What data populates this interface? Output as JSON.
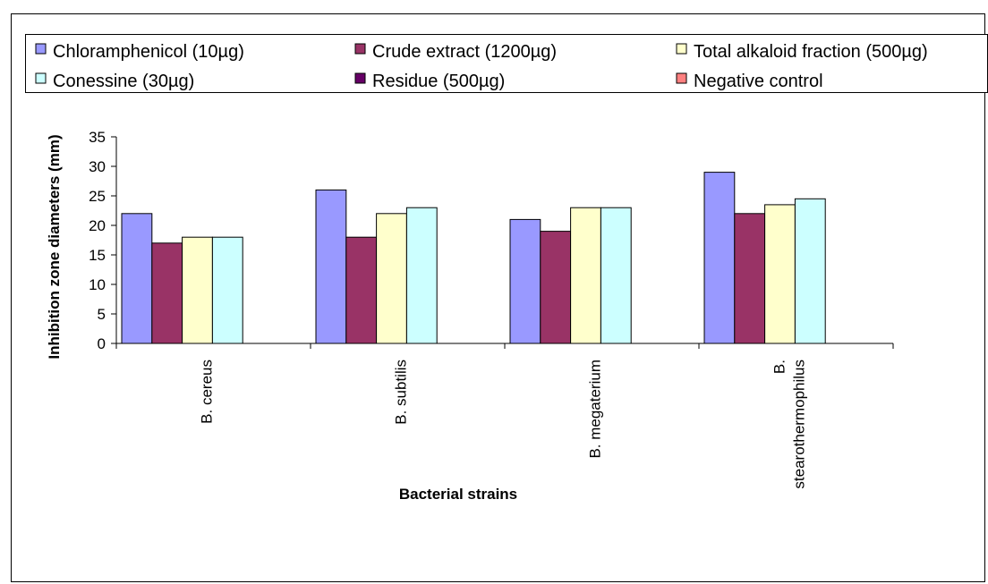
{
  "chart_data": {
    "type": "bar",
    "title": "",
    "xlabel": "Bacterial strains",
    "ylabel": "Inhibition zone diameters (mm)",
    "ylim": [
      0,
      35
    ],
    "yticks": [
      "0",
      "5",
      "10",
      "15",
      "20",
      "25",
      "30",
      "35"
    ],
    "categories": [
      "B. cereus",
      "B. subtilis",
      "B. megaterium",
      "B. stearothermophilus"
    ],
    "category_label_lines": [
      [
        "B. cereus"
      ],
      [
        "B. subtilis"
      ],
      [
        "B. megaterium"
      ],
      [
        "B.",
        "stearothermophilus"
      ]
    ],
    "series": [
      {
        "name": "Chloramphenicol (10µg)",
        "color": "#9999ff",
        "values": [
          22,
          26,
          21,
          29
        ]
      },
      {
        "name": "Crude extract (1200µg)",
        "color": "#993366",
        "values": [
          17,
          18,
          19,
          22
        ]
      },
      {
        "name": "Total alkaloid fraction (500µg)",
        "color": "#ffffcc",
        "values": [
          18,
          22,
          23,
          23.5
        ]
      },
      {
        "name": "Conessine (30µg)",
        "color": "#ccffff",
        "values": [
          18,
          23,
          23,
          24.5
        ]
      },
      {
        "name": "Residue (500µg)",
        "color": "#660066",
        "values": [
          0,
          0,
          0,
          0
        ]
      },
      {
        "name": "Negative control",
        "color": "#ff8080",
        "values": [
          0,
          0,
          0,
          0
        ]
      }
    ],
    "grid": false,
    "legend_position": "top"
  }
}
